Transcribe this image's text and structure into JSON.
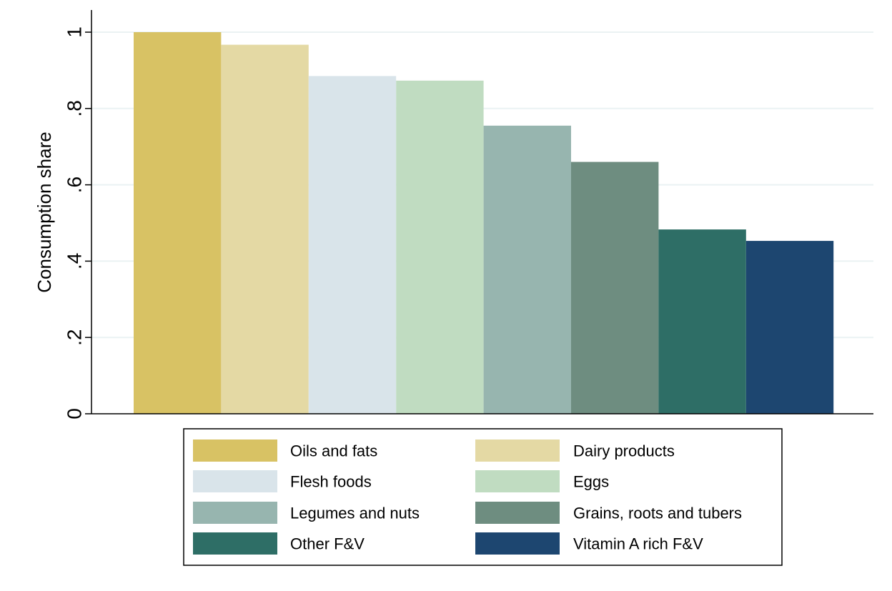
{
  "chart_data": {
    "type": "bar",
    "title": "",
    "xlabel": "",
    "ylabel": "Consumption share",
    "ylim": [
      0,
      1
    ],
    "yticks": [
      "0",
      ".2",
      ".4",
      ".6",
      ".8",
      "1"
    ],
    "ytick_values": [
      0,
      0.2,
      0.4,
      0.6,
      0.8,
      1.0
    ],
    "grid": true,
    "legend_position": "bottom",
    "series": [
      {
        "name": "Oils and fats",
        "value": 1.0,
        "color": "#D8C264"
      },
      {
        "name": "Dairy products",
        "value": 0.967,
        "color": "#E4D9A4"
      },
      {
        "name": "Flesh foods",
        "value": 0.885,
        "color": "#D9E4EA"
      },
      {
        "name": "Eggs",
        "value": 0.873,
        "color": "#C0DCC1"
      },
      {
        "name": "Legumes and nuts",
        "value": 0.755,
        "color": "#97B5AF"
      },
      {
        "name": "Grains, roots and tubers",
        "value": 0.66,
        "color": "#6E8D80"
      },
      {
        "name": "Other F&V",
        "value": 0.483,
        "color": "#2E6E66"
      },
      {
        "name": "Vitamin A rich F&V",
        "value": 0.453,
        "color": "#1D4670"
      }
    ]
  }
}
